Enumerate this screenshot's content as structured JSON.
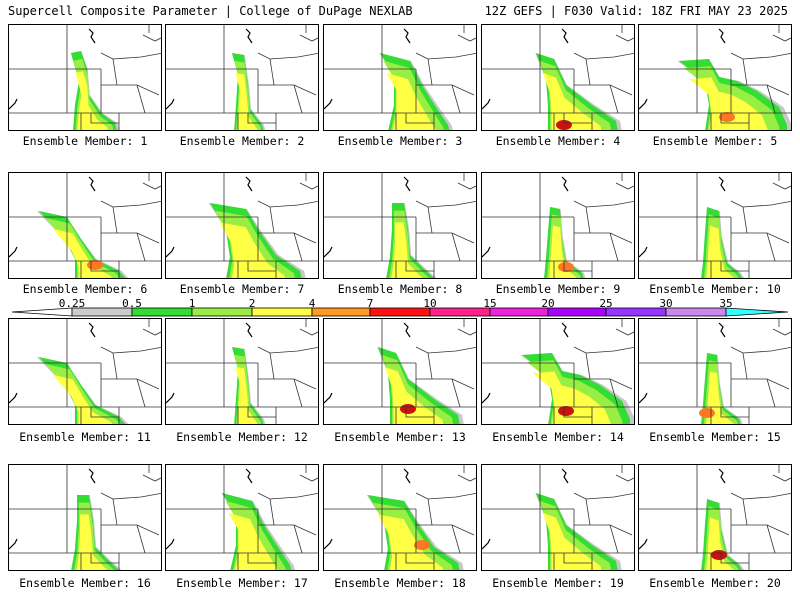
{
  "header": {
    "title_left": "Supercell Composite Parameter | College of DuPage NEXLAB",
    "title_right": "12Z GEFS | F030 Valid: 18Z FRI MAY 23 2025"
  },
  "colorbar": {
    "labels": [
      "0.25",
      "0.5",
      "1",
      "2",
      "4",
      "7",
      "10",
      "15",
      "20",
      "25",
      "30",
      "35"
    ],
    "colors": [
      "#cccccc",
      "#33dd33",
      "#99ee44",
      "#ffff44",
      "#ff9922",
      "#ff1111",
      "#ff2288",
      "#ee22dd",
      "#aa00ff",
      "#9933ff",
      "#cc88ee",
      "#33ffff"
    ]
  },
  "panels": [
    {
      "label": "Ensemble Member: 1"
    },
    {
      "label": "Ensemble Member: 2"
    },
    {
      "label": "Ensemble Member: 3"
    },
    {
      "label": "Ensemble Member: 4"
    },
    {
      "label": "Ensemble Member: 5"
    },
    {
      "label": "Ensemble Member: 6"
    },
    {
      "label": "Ensemble Member: 7"
    },
    {
      "label": "Ensemble Member: 8"
    },
    {
      "label": "Ensemble Member: 9"
    },
    {
      "label": "Ensemble Member: 10"
    },
    {
      "label": "Ensemble Member: 11"
    },
    {
      "label": "Ensemble Member: 12"
    },
    {
      "label": "Ensemble Member: 13"
    },
    {
      "label": "Ensemble Member: 14"
    },
    {
      "label": "Ensemble Member: 15"
    },
    {
      "label": "Ensemble Member: 16"
    },
    {
      "label": "Ensemble Member: 17"
    },
    {
      "label": "Ensemble Member: 18"
    },
    {
      "label": "Ensemble Member: 19"
    },
    {
      "label": "Ensemble Member: 20"
    }
  ]
}
